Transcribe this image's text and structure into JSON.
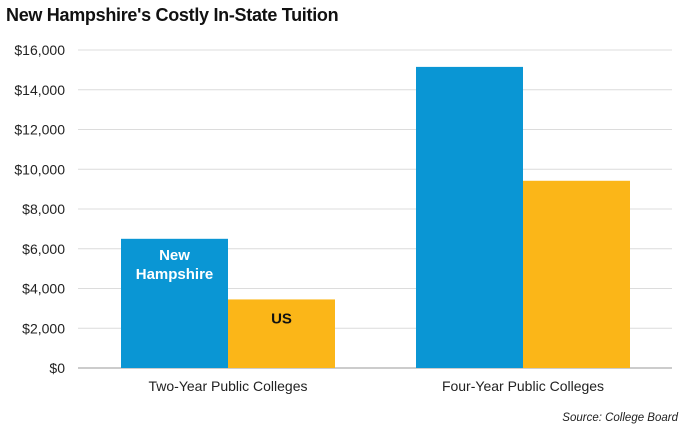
{
  "chart_data": {
    "type": "bar",
    "title": "New Hampshire's Costly In-State Tuition",
    "categories": [
      "Two-Year Public Colleges",
      "Four-Year Public Colleges"
    ],
    "series": [
      {
        "name": "New Hampshire",
        "values": [
          6500,
          15150
        ],
        "color": "#0a96d4",
        "label_color": "#ffffff"
      },
      {
        "name": "US",
        "values": [
          3450,
          9420
        ],
        "color": "#fbb618",
        "label_color": "#111111"
      }
    ],
    "ylim": [
      0,
      16000
    ],
    "yticks": [
      "$0",
      "$2,000",
      "$4,000",
      "$6,000",
      "$8,000",
      "$10,000",
      "$12,000",
      "$14,000",
      "$16,000"
    ],
    "ytick_values": [
      0,
      2000,
      4000,
      6000,
      8000,
      10000,
      12000,
      14000,
      16000
    ],
    "grid": true,
    "legend": "series names labeled inside first-category bars",
    "source": "Source: College Board"
  }
}
